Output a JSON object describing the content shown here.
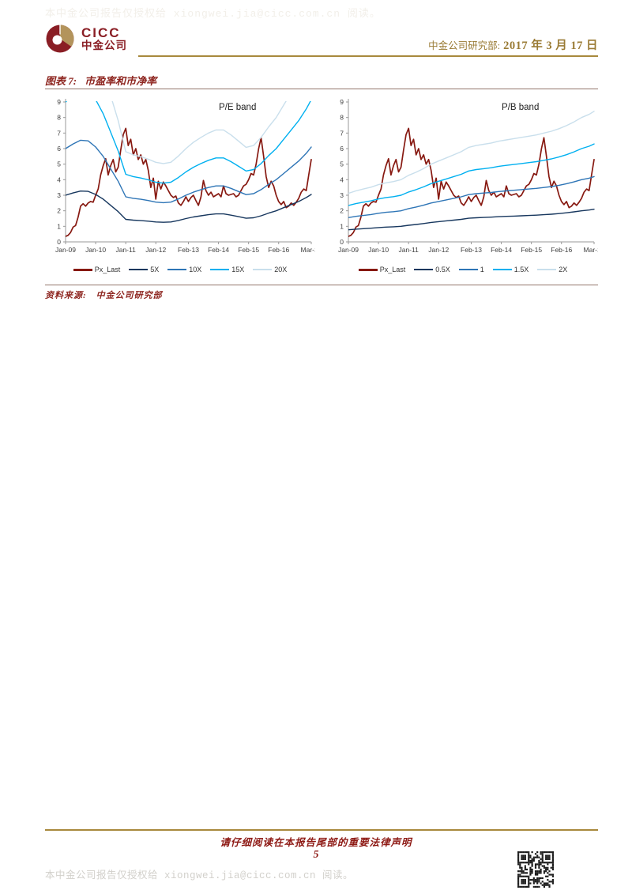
{
  "watermark_top": "本中金公司报告仅授权给 xiongwei.jia@cicc.com.cn 阅读。",
  "header": {
    "logo_name": "CICC",
    "logo_cn": "中金公司",
    "dept": "中金公司研究部:",
    "date": "2017 年 3 月 17 日"
  },
  "figure": {
    "label": "图表 7:",
    "title": "市盈率和市净率"
  },
  "source": {
    "label": "资料来源:",
    "text": "中金公司研究部"
  },
  "footer": {
    "legal": "请仔细阅读在本报告尾部的重要法律声明",
    "page_number": "5",
    "watermark": "本中金公司报告仅授权给 xiongwei.jia@cicc.com.cn 阅读。"
  },
  "colors": {
    "brand_maroon": "#8a1e25",
    "brand_gold": "#b3945c",
    "gold_rule": "#a8893d",
    "title_red": "#8e2620",
    "price_line": "#871911",
    "band_dark_navy": "#17375e",
    "band_blue": "#2e75b6",
    "band_cyan": "#00b0f0",
    "band_pale": "#c9dfec",
    "axis_grey": "#9a9a9a",
    "axis_text": "#3f3f3f"
  },
  "chart_data": [
    {
      "type": "line",
      "title": "P/E band",
      "ylim": [
        0,
        9
      ],
      "yticks": [
        0,
        1,
        2,
        3,
        4,
        5,
        6,
        7,
        8,
        9
      ],
      "months_total": 98,
      "x_tick_labels": [
        "Jan-09",
        "Jan-10",
        "Jan-11",
        "Jan-12",
        "Feb-13",
        "Feb-14",
        "Feb-15",
        "Feb-16",
        "Mar-17"
      ],
      "x_tick_months": [
        0,
        12,
        24,
        36,
        49,
        61,
        73,
        85,
        98
      ],
      "grid": false,
      "legend_position": "bottom",
      "series": [
        {
          "name": "Px_Last",
          "color": "#871911",
          "width": 1.7,
          "values": [
            0.35,
            0.42,
            0.6,
            0.95,
            1.05,
            1.6,
            2.3,
            2.45,
            2.3,
            2.5,
            2.6,
            2.55,
            3.0,
            3.4,
            4.3,
            4.9,
            5.35,
            4.3,
            4.9,
            5.3,
            4.5,
            4.8,
            5.9,
            6.9,
            7.3,
            6.2,
            6.6,
            5.6,
            6.0,
            5.3,
            5.6,
            5.0,
            5.3,
            4.6,
            3.5,
            4.1,
            2.75,
            3.9,
            3.4,
            3.85,
            3.6,
            3.3,
            3.0,
            2.85,
            2.95,
            2.5,
            2.35,
            2.6,
            2.9,
            2.6,
            2.85,
            3.0,
            2.65,
            2.35,
            2.9,
            3.95,
            3.3,
            3.0,
            3.2,
            2.9,
            3.0,
            3.1,
            2.9,
            3.6,
            3.1,
            3.0,
            3.05,
            3.1,
            2.9,
            3.0,
            3.3,
            3.6,
            3.7,
            4.0,
            4.4,
            4.3,
            5.0,
            6.0,
            6.7,
            5.5,
            4.2,
            3.5,
            3.9,
            3.6,
            3.0,
            2.6,
            2.4,
            2.6,
            2.2,
            2.3,
            2.5,
            2.35,
            2.55,
            2.8,
            3.2,
            3.4,
            3.3,
            4.3,
            5.3
          ]
        },
        {
          "name": "5X",
          "color": "#17375e",
          "width": 1.4,
          "x_index": [
            0,
            3,
            6,
            9,
            12,
            15,
            18,
            21,
            24,
            27,
            30,
            33,
            36,
            39,
            42,
            45,
            48,
            51,
            54,
            57,
            60,
            63,
            66,
            69,
            72,
            75,
            78,
            81,
            84,
            87,
            90,
            93,
            96,
            98
          ],
          "values": [
            3.0,
            3.15,
            3.27,
            3.25,
            3.05,
            2.75,
            2.35,
            1.95,
            1.45,
            1.4,
            1.37,
            1.33,
            1.28,
            1.26,
            1.28,
            1.38,
            1.5,
            1.6,
            1.68,
            1.75,
            1.8,
            1.8,
            1.72,
            1.62,
            1.52,
            1.55,
            1.68,
            1.85,
            2.0,
            2.2,
            2.4,
            2.6,
            2.85,
            3.05
          ]
        },
        {
          "name": "10X",
          "color": "#2e75b6",
          "width": 1.4,
          "x_index": [
            0,
            3,
            6,
            9,
            12,
            15,
            18,
            21,
            24,
            27,
            30,
            33,
            36,
            39,
            42,
            45,
            48,
            51,
            54,
            57,
            60,
            63,
            66,
            69,
            72,
            75,
            78,
            81,
            84,
            87,
            90,
            93,
            96,
            98
          ],
          "values": [
            6.0,
            6.3,
            6.54,
            6.5,
            6.1,
            5.5,
            4.7,
            3.9,
            2.9,
            2.8,
            2.74,
            2.66,
            2.56,
            2.52,
            2.56,
            2.76,
            3.0,
            3.2,
            3.36,
            3.5,
            3.6,
            3.6,
            3.44,
            3.24,
            3.04,
            3.1,
            3.36,
            3.7,
            4.0,
            4.4,
            4.8,
            5.2,
            5.7,
            6.1
          ]
        },
        {
          "name": "15X",
          "color": "#00b0f0",
          "width": 1.4,
          "x_index": [
            0,
            3,
            6,
            9,
            12,
            15,
            18,
            21,
            24,
            27,
            30,
            33,
            36,
            39,
            42,
            45,
            48,
            51,
            54,
            57,
            60,
            63,
            66,
            69,
            72,
            75,
            78,
            81,
            84,
            87,
            90,
            93,
            96,
            98
          ],
          "values": [
            9.0,
            9.45,
            9.81,
            9.75,
            9.15,
            8.25,
            7.05,
            5.85,
            4.35,
            4.2,
            4.11,
            3.99,
            3.84,
            3.78,
            3.84,
            4.14,
            4.5,
            4.8,
            5.04,
            5.25,
            5.4,
            5.4,
            5.16,
            4.86,
            4.56,
            4.65,
            5.04,
            5.55,
            6.0,
            6.6,
            7.2,
            7.8,
            8.55,
            9.15
          ]
        },
        {
          "name": "20X",
          "color": "#c9dfec",
          "width": 1.4,
          "x_index": [
            0,
            3,
            6,
            9,
            12,
            15,
            18,
            21,
            24,
            27,
            30,
            33,
            36,
            39,
            42,
            45,
            48,
            51,
            54,
            57,
            60,
            63,
            66,
            69,
            72,
            75,
            78,
            81,
            84,
            87,
            90,
            93,
            96,
            98
          ],
          "values": [
            12.0,
            12.6,
            13.08,
            13.0,
            12.2,
            11.0,
            9.4,
            7.8,
            5.8,
            5.6,
            5.48,
            5.32,
            5.12,
            5.04,
            5.12,
            5.52,
            6.0,
            6.4,
            6.72,
            7.0,
            7.2,
            7.2,
            6.88,
            6.48,
            6.08,
            6.2,
            6.72,
            7.4,
            8.0,
            8.8,
            9.6,
            10.4,
            11.4,
            12.2
          ]
        }
      ]
    },
    {
      "type": "line",
      "title": "P/B band",
      "ylim": [
        0,
        9
      ],
      "yticks": [
        0,
        1,
        2,
        3,
        4,
        5,
        6,
        7,
        8,
        9
      ],
      "months_total": 98,
      "x_tick_labels": [
        "Jan-09",
        "Jan-10",
        "Jan-11",
        "Jan-12",
        "Feb-13",
        "Feb-14",
        "Feb-15",
        "Feb-16",
        "Mar-17"
      ],
      "x_tick_months": [
        0,
        12,
        24,
        36,
        49,
        61,
        73,
        85,
        98
      ],
      "grid": false,
      "legend_position": "bottom",
      "series": [
        {
          "name": "Px_Last",
          "color": "#871911",
          "width": 1.7,
          "values": [
            0.35,
            0.42,
            0.6,
            0.95,
            1.05,
            1.6,
            2.3,
            2.45,
            2.3,
            2.5,
            2.6,
            2.55,
            3.0,
            3.4,
            4.3,
            4.9,
            5.35,
            4.3,
            4.9,
            5.3,
            4.5,
            4.8,
            5.9,
            6.9,
            7.3,
            6.2,
            6.6,
            5.6,
            6.0,
            5.3,
            5.6,
            5.0,
            5.3,
            4.6,
            3.5,
            4.1,
            2.75,
            3.9,
            3.4,
            3.85,
            3.6,
            3.3,
            3.0,
            2.85,
            2.95,
            2.5,
            2.35,
            2.6,
            2.9,
            2.6,
            2.85,
            3.0,
            2.65,
            2.35,
            2.9,
            3.95,
            3.3,
            3.0,
            3.2,
            2.9,
            3.0,
            3.1,
            2.9,
            3.6,
            3.1,
            3.0,
            3.05,
            3.1,
            2.9,
            3.0,
            3.3,
            3.6,
            3.7,
            4.0,
            4.4,
            4.3,
            5.0,
            6.0,
            6.7,
            5.5,
            4.2,
            3.5,
            3.9,
            3.6,
            3.0,
            2.6,
            2.4,
            2.6,
            2.2,
            2.3,
            2.5,
            2.35,
            2.55,
            2.8,
            3.2,
            3.4,
            3.3,
            4.3,
            5.3
          ]
        },
        {
          "name": "0.5X",
          "color": "#17375e",
          "width": 1.4,
          "x_index": [
            0,
            3,
            6,
            9,
            12,
            15,
            18,
            21,
            24,
            27,
            30,
            33,
            36,
            39,
            42,
            45,
            48,
            51,
            54,
            57,
            60,
            63,
            66,
            69,
            72,
            75,
            78,
            81,
            84,
            87,
            90,
            93,
            96,
            98
          ],
          "values": [
            0.78,
            0.82,
            0.85,
            0.88,
            0.92,
            0.95,
            0.97,
            1.0,
            1.07,
            1.12,
            1.18,
            1.25,
            1.3,
            1.35,
            1.4,
            1.45,
            1.52,
            1.55,
            1.57,
            1.59,
            1.62,
            1.64,
            1.66,
            1.68,
            1.7,
            1.72,
            1.75,
            1.78,
            1.82,
            1.87,
            1.93,
            2.0,
            2.05,
            2.1
          ]
        },
        {
          "name": "1",
          "color": "#2e75b6",
          "width": 1.4,
          "x_index": [
            0,
            3,
            6,
            9,
            12,
            15,
            18,
            21,
            24,
            27,
            30,
            33,
            36,
            39,
            42,
            45,
            48,
            51,
            54,
            57,
            60,
            63,
            66,
            69,
            72,
            75,
            78,
            81,
            84,
            87,
            90,
            93,
            96,
            98
          ],
          "values": [
            1.56,
            1.64,
            1.7,
            1.76,
            1.84,
            1.9,
            1.94,
            2.0,
            2.14,
            2.24,
            2.36,
            2.5,
            2.6,
            2.7,
            2.8,
            2.9,
            3.04,
            3.1,
            3.14,
            3.18,
            3.24,
            3.28,
            3.32,
            3.36,
            3.4,
            3.44,
            3.5,
            3.56,
            3.64,
            3.74,
            3.86,
            4.0,
            4.1,
            4.2
          ]
        },
        {
          "name": "1.5X",
          "color": "#00b0f0",
          "width": 1.4,
          "x_index": [
            0,
            3,
            6,
            9,
            12,
            15,
            18,
            21,
            24,
            27,
            30,
            33,
            36,
            39,
            42,
            45,
            48,
            51,
            54,
            57,
            60,
            63,
            66,
            69,
            72,
            75,
            78,
            81,
            84,
            87,
            90,
            93,
            96,
            98
          ],
          "values": [
            2.34,
            2.46,
            2.55,
            2.64,
            2.76,
            2.85,
            2.91,
            3.0,
            3.21,
            3.36,
            3.54,
            3.75,
            3.9,
            4.05,
            4.2,
            4.35,
            4.56,
            4.65,
            4.71,
            4.77,
            4.86,
            4.92,
            4.98,
            5.04,
            5.1,
            5.16,
            5.25,
            5.34,
            5.46,
            5.61,
            5.79,
            6.0,
            6.15,
            6.3
          ]
        },
        {
          "name": "2X",
          "color": "#c9dfec",
          "width": 1.4,
          "x_index": [
            0,
            3,
            6,
            9,
            12,
            15,
            18,
            21,
            24,
            27,
            30,
            33,
            36,
            39,
            42,
            45,
            48,
            51,
            54,
            57,
            60,
            63,
            66,
            69,
            72,
            75,
            78,
            81,
            84,
            87,
            90,
            93,
            96,
            98
          ],
          "values": [
            3.12,
            3.28,
            3.4,
            3.52,
            3.68,
            3.8,
            3.88,
            4.0,
            4.28,
            4.48,
            4.72,
            5.0,
            5.2,
            5.4,
            5.6,
            5.8,
            6.08,
            6.2,
            6.28,
            6.36,
            6.48,
            6.56,
            6.64,
            6.72,
            6.8,
            6.88,
            7.0,
            7.12,
            7.28,
            7.48,
            7.72,
            8.0,
            8.2,
            8.4
          ]
        }
      ]
    }
  ]
}
